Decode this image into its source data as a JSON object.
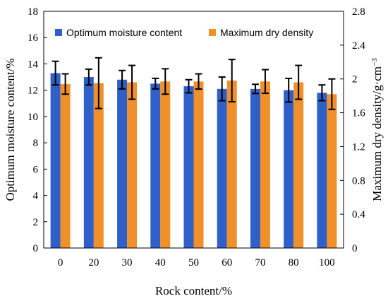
{
  "chart_data": {
    "type": "bar",
    "xlabel": "Rock content/%",
    "ylabel_left": "Optimum moisture content/%",
    "ylabel_right_parts": [
      "Maximum dry density/g·cm",
      "−3"
    ],
    "categories": [
      "0",
      "20",
      "30",
      "40",
      "50",
      "60",
      "70",
      "80",
      "100"
    ],
    "y_left": {
      "lim": [
        0,
        18
      ],
      "ticks": [
        "0",
        "2",
        "4",
        "6",
        "8",
        "10",
        "12",
        "14",
        "16",
        "18"
      ]
    },
    "y_right": {
      "lim": [
        0,
        2.8
      ],
      "ticks": [
        "0",
        "0.4",
        "0.8",
        "1.2",
        "1.6",
        "2",
        "2.4",
        "2.8"
      ]
    },
    "legend_position": "top",
    "series": [
      {
        "name": "Optimum moisture content",
        "axis": "left",
        "color": "#2f5fc8",
        "values": [
          13.3,
          13.0,
          12.8,
          12.5,
          12.3,
          12.1,
          12.1,
          12.0,
          11.8
        ],
        "errors": [
          0.9,
          0.6,
          0.7,
          0.4,
          0.5,
          0.9,
          0.35,
          0.9,
          0.6
        ]
      },
      {
        "name": "Maximum dry density",
        "axis": "right",
        "color": "#f0902a",
        "values": [
          1.94,
          1.95,
          1.96,
          1.97,
          1.97,
          1.98,
          1.97,
          1.96,
          1.82
        ],
        "errors": [
          0.12,
          0.3,
          0.2,
          0.15,
          0.09,
          0.25,
          0.14,
          0.2,
          0.18
        ]
      }
    ]
  }
}
